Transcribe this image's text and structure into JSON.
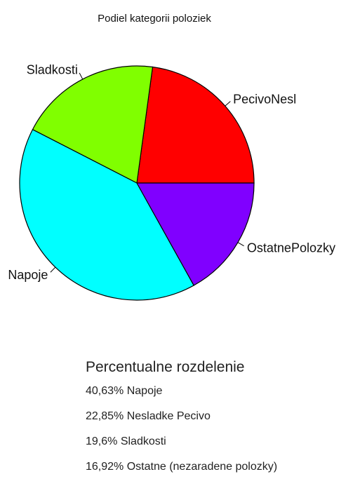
{
  "chart_data": {
    "type": "pie",
    "title": "Podiel kategorii poloziek",
    "slices": [
      {
        "label": "PecivoNesl",
        "value": 22.85,
        "color": "#ff0000"
      },
      {
        "label": "Sladkosti",
        "value": 19.6,
        "color": "#80ff00"
      },
      {
        "label": "Napoje",
        "value": 40.63,
        "color": "#00ffff"
      },
      {
        "label": "OstatnePolozky",
        "value": 16.92,
        "color": "#8000ff"
      }
    ],
    "legend": "none",
    "start_angle_deg": 0,
    "direction": "counterclockwise"
  },
  "summary": {
    "heading": "Percentualne rozdelenie",
    "items": [
      "40,63% Napoje",
      "22,85% Nesladke Pecivo",
      "19,6% Sladkosti",
      "16,92% Ostatne (nezaradene polozky)"
    ]
  }
}
